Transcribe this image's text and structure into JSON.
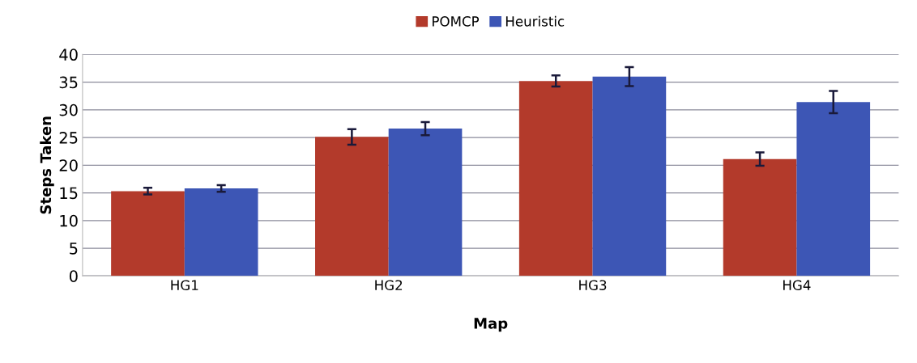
{
  "chart_data": {
    "type": "bar",
    "xlabel": "Map",
    "ylabel": "Steps Taken",
    "categories": [
      "HG1",
      "HG2",
      "HG3",
      "HG4"
    ],
    "series": [
      {
        "name": "POMCP",
        "color": "#b33a2b",
        "values": [
          15.3,
          25.1,
          35.2,
          21.1
        ],
        "errors": [
          0.6,
          1.4,
          1.0,
          1.2
        ]
      },
      {
        "name": "Heuristic",
        "color": "#3d56b5",
        "values": [
          15.8,
          26.6,
          36.0,
          31.4
        ],
        "errors": [
          0.6,
          1.2,
          1.7,
          2.0
        ]
      }
    ],
    "ylim": [
      0,
      40
    ],
    "yticks": [
      0,
      5,
      10,
      15,
      20,
      25,
      30,
      35,
      40
    ],
    "grid": "y",
    "legend": "top"
  }
}
